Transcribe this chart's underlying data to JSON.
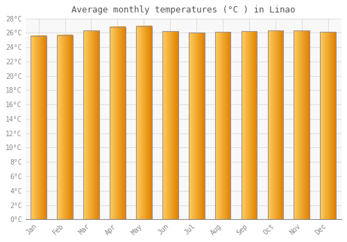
{
  "title": "Average monthly temperatures (°C ) in Linao",
  "months": [
    "Jan",
    "Feb",
    "Mar",
    "Apr",
    "May",
    "Jun",
    "Jul",
    "Aug",
    "Sep",
    "Oct",
    "Nov",
    "Dec"
  ],
  "temperatures": [
    25.6,
    25.7,
    26.3,
    26.8,
    26.9,
    26.2,
    26.0,
    26.1,
    26.2,
    26.3,
    26.3,
    26.1
  ],
  "bar_color_left": "#FFD060",
  "bar_color_center": "#FFAA00",
  "bar_color_right": "#E08000",
  "bar_edge_color": "#A09090",
  "background_color": "#FFFFFF",
  "plot_bg_color": "#F8F8F8",
  "grid_color": "#D8D8D8",
  "title_color": "#555555",
  "tick_color": "#888888",
  "ylim": [
    0,
    28
  ],
  "yticks": [
    0,
    2,
    4,
    6,
    8,
    10,
    12,
    14,
    16,
    18,
    20,
    22,
    24,
    26,
    28
  ],
  "ytick_labels": [
    "0°C",
    "2°C",
    "4°C",
    "6°C",
    "8°C",
    "10°C",
    "12°C",
    "14°C",
    "16°C",
    "18°C",
    "20°C",
    "22°C",
    "24°C",
    "26°C",
    "28°C"
  ]
}
